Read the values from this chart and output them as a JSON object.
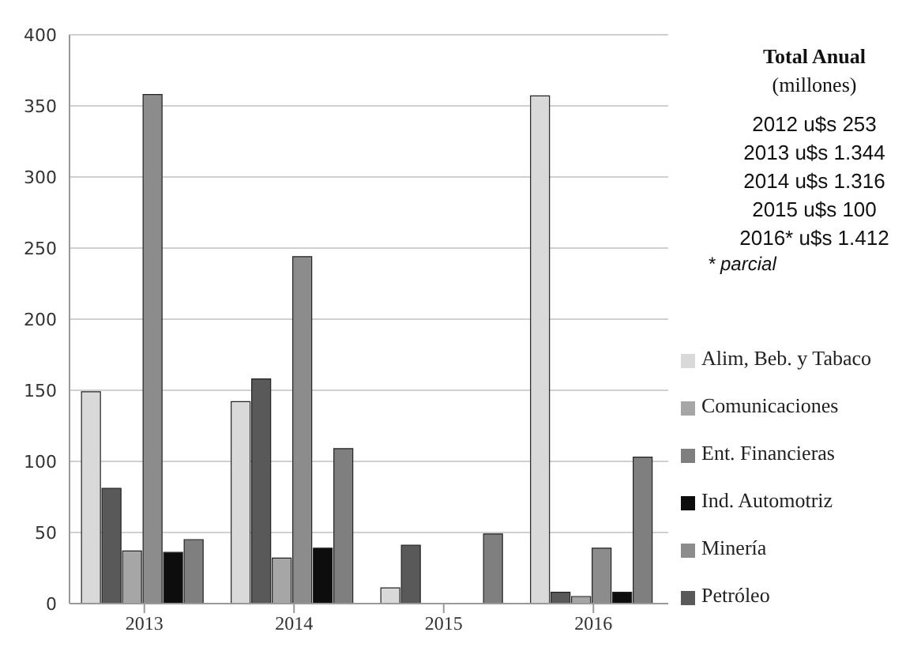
{
  "chart_data": {
    "type": "bar",
    "categories": [
      "2013",
      "2014",
      "2015",
      "2016"
    ],
    "series": [
      {
        "name": "Alim, Beb. y Tabaco",
        "color": "#d9d9d9",
        "values": [
          149,
          142,
          11,
          357
        ]
      },
      {
        "name": "Petróleo",
        "color": "#595959",
        "values": [
          81,
          158,
          41,
          8
        ]
      },
      {
        "name": "Comunicaciones",
        "color": "#a6a6a6",
        "values": [
          37,
          32,
          null,
          5
        ]
      },
      {
        "name": "Minería",
        "color": "#8c8c8c",
        "values": [
          358,
          244,
          null,
          39
        ]
      },
      {
        "name": "Ind. Automotriz",
        "color": "#0d0d0d",
        "values": [
          36,
          39,
          null,
          8
        ]
      },
      {
        "name": "Ent. Financieras",
        "color": "#7f7f7f",
        "values": [
          45,
          109,
          49,
          103
        ]
      }
    ],
    "ylim": [
      0,
      400
    ],
    "yticks": [
      0,
      50,
      100,
      150,
      200,
      250,
      300,
      350,
      400
    ],
    "grid": "y",
    "legend": "right",
    "annotations": [
      "Total Anual",
      "(millones)",
      "2012 u$s 253",
      "2013 u$s 1.344",
      "2014 u$s 1.316",
      "2015 u$s 100",
      "2016* u$s 1.412",
      "* parcial"
    ]
  }
}
